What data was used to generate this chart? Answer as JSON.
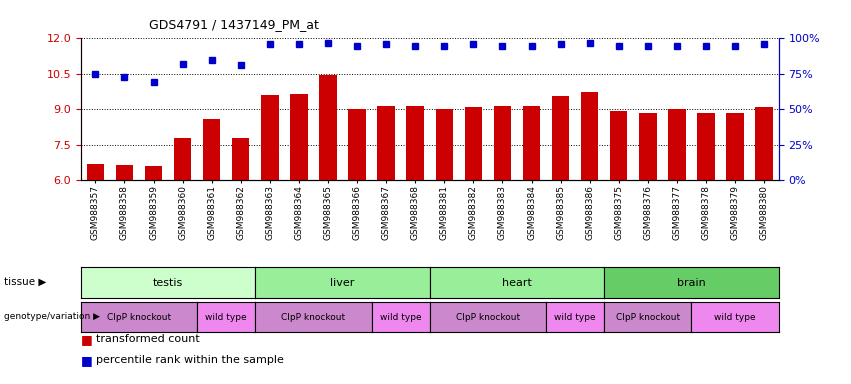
{
  "title": "GDS4791 / 1437149_PM_at",
  "samples": [
    "GSM988357",
    "GSM988358",
    "GSM988359",
    "GSM988360",
    "GSM988361",
    "GSM988362",
    "GSM988363",
    "GSM988364",
    "GSM988365",
    "GSM988366",
    "GSM988367",
    "GSM988368",
    "GSM988381",
    "GSM988382",
    "GSM988383",
    "GSM988384",
    "GSM988385",
    "GSM988386",
    "GSM988375",
    "GSM988376",
    "GSM988377",
    "GSM988378",
    "GSM988379",
    "GSM988380"
  ],
  "bar_values": [
    6.7,
    6.65,
    6.6,
    7.8,
    8.6,
    7.8,
    9.6,
    9.65,
    10.45,
    9.0,
    9.15,
    9.15,
    9.0,
    9.1,
    9.15,
    9.15,
    9.55,
    9.75,
    8.95,
    8.85,
    9.0,
    8.85,
    8.85,
    9.1
  ],
  "percentile_values": [
    75,
    73,
    69,
    82,
    85,
    81,
    96,
    96,
    97,
    95,
    96,
    95,
    95,
    96,
    95,
    95,
    96,
    97,
    95,
    95,
    95,
    95,
    95,
    96
  ],
  "ylim_left": [
    6,
    12
  ],
  "ylim_right": [
    0,
    100
  ],
  "yticks_left": [
    6,
    7.5,
    9,
    10.5,
    12
  ],
  "yticks_right": [
    0,
    25,
    50,
    75,
    100
  ],
  "bar_color": "#cc0000",
  "dot_color": "#0000cc",
  "tissue_groups": [
    {
      "label": "testis",
      "start": 0,
      "end": 6,
      "color": "#ccffcc"
    },
    {
      "label": "liver",
      "start": 6,
      "end": 12,
      "color": "#99ee99"
    },
    {
      "label": "heart",
      "start": 12,
      "end": 18,
      "color": "#99ee99"
    },
    {
      "label": "brain",
      "start": 18,
      "end": 24,
      "color": "#66cc66"
    }
  ],
  "genotype_groups": [
    {
      "label": "ClpP knockout",
      "start": 0,
      "end": 4,
      "color": "#cc88cc"
    },
    {
      "label": "wild type",
      "start": 4,
      "end": 6,
      "color": "#ee88ee"
    },
    {
      "label": "ClpP knockout",
      "start": 6,
      "end": 10,
      "color": "#cc88cc"
    },
    {
      "label": "wild type",
      "start": 10,
      "end": 12,
      "color": "#ee88ee"
    },
    {
      "label": "ClpP knockout",
      "start": 12,
      "end": 16,
      "color": "#cc88cc"
    },
    {
      "label": "wild type",
      "start": 16,
      "end": 18,
      "color": "#ee88ee"
    },
    {
      "label": "ClpP knockout",
      "start": 18,
      "end": 21,
      "color": "#cc88cc"
    },
    {
      "label": "wild type",
      "start": 21,
      "end": 24,
      "color": "#ee88ee"
    }
  ],
  "legend_items": [
    {
      "label": "transformed count",
      "color": "#cc0000"
    },
    {
      "label": "percentile rank within the sample",
      "color": "#0000cc"
    }
  ],
  "tissue_label": "tissue",
  "genotype_label": "genotype/variation",
  "left_axis_color": "#cc0000",
  "right_axis_color": "#0000cc"
}
